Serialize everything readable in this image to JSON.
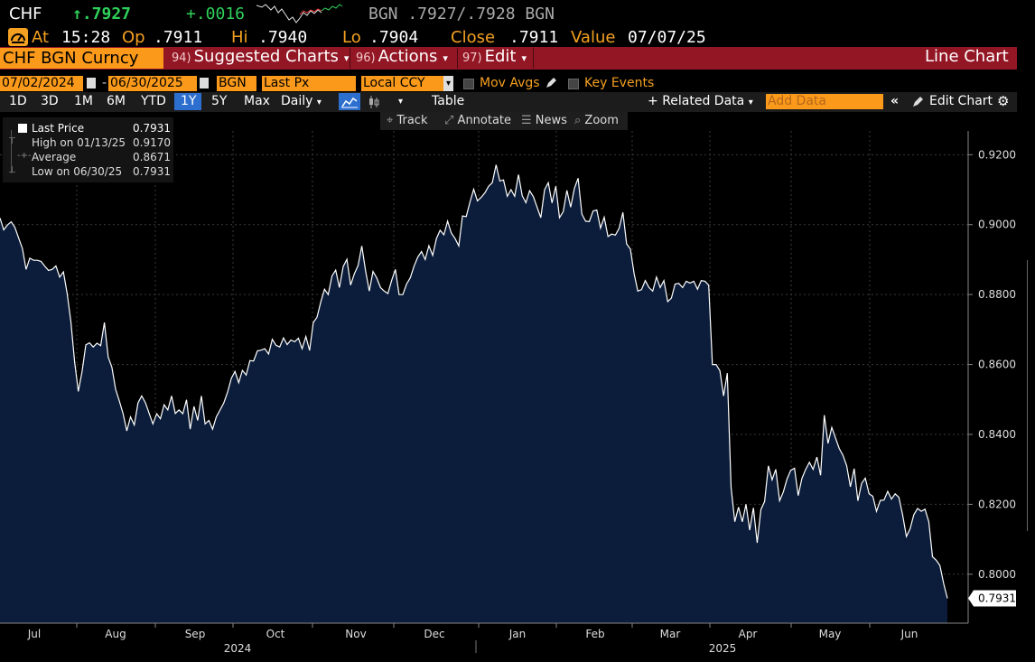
{
  "quote": {
    "ticker": "CHF",
    "last": "↑.7927",
    "change": "+.0016",
    "bid_ask": "BGN .7927/.7928 BGN",
    "time_label": "At",
    "time": "15:28",
    "open_label": "Op",
    "open": ".7911",
    "high_label": "Hi",
    "high": ".7940",
    "low_label": "Lo",
    "low": ".7904",
    "close_label": "Close",
    "close": ".7911",
    "value_label": "Value",
    "value_date": "07/07/25"
  },
  "menubar": {
    "security": "CHF BGN Curncy",
    "suggested_num": "94)",
    "suggested": "Suggested Charts",
    "actions_num": "96)",
    "actions": "Actions",
    "edit_num": "97)",
    "edit": "Edit",
    "chart_type": "Line Chart"
  },
  "settings": {
    "start_date": "07/02/2024",
    "end_date": "06/30/2025",
    "source": "BGN",
    "field": "Last Px",
    "currency": "Local CCY",
    "mov_avgs": "Mov Avgs",
    "key_events": "Key Events"
  },
  "toolbar": {
    "periods": [
      "1D",
      "3D",
      "1M",
      "6M",
      "YTD",
      "1Y",
      "5Y",
      "Max"
    ],
    "selected_period": "1Y",
    "frequency": "Daily",
    "table": "Table",
    "related_data": "Related Data",
    "add_data_placeholder": "Add Data",
    "edit_chart": "Edit Chart"
  },
  "chart_tools": {
    "track": "Track",
    "annotate": "Annotate",
    "news": "News",
    "zoom": "Zoom"
  },
  "legend": {
    "last_price_label": "Last Price",
    "last_price": "0.7931",
    "high_label": "High on 01/13/25",
    "high": "0.9170",
    "average_label": "Average",
    "average": "0.8671",
    "low_label": "Low on 06/30/25",
    "low": "0.7931"
  },
  "colors": {
    "orange": "#fb9a1a",
    "menu_red": "#931624",
    "area_fill": "#0b1d3a",
    "line": "#ffffff",
    "up_green": "#2fd05a"
  },
  "chart_data": {
    "type": "area",
    "title": "",
    "xlabel": "",
    "ylabel": "",
    "ylim": [
      0.786,
      0.9268
    ],
    "y_ticks": [
      "0.9200",
      "0.9000",
      "0.8800",
      "0.8600",
      "0.8400",
      "0.8200",
      "0.8000"
    ],
    "month_labels": [
      "Jul",
      "Aug",
      "Sep",
      "Oct",
      "Nov",
      "Dec",
      "Jan",
      "Feb",
      "Mar",
      "Apr",
      "May",
      "Jun"
    ],
    "year_labels": [
      "2024",
      "2025"
    ],
    "last_value_label": "0.7931",
    "series": [
      {
        "values": [
          0.9019,
          0.8985,
          0.8999,
          0.9008,
          0.8992,
          0.8962,
          0.8932,
          0.8872,
          0.8904,
          0.8898,
          0.8898,
          0.8895,
          0.8881,
          0.8869,
          0.8872,
          0.8882,
          0.885,
          0.8865,
          0.8804,
          0.8722,
          0.8608,
          0.8523,
          0.858,
          0.8656,
          0.8662,
          0.865,
          0.8661,
          0.8654,
          0.872,
          0.8621,
          0.8592,
          0.8529,
          0.8495,
          0.8459,
          0.841,
          0.845,
          0.8427,
          0.849,
          0.851,
          0.849,
          0.846,
          0.843,
          0.8459,
          0.8445,
          0.8485,
          0.847,
          0.851,
          0.846,
          0.847,
          0.8459,
          0.8499,
          0.8415,
          0.848,
          0.844,
          0.851,
          0.843,
          0.844,
          0.8415,
          0.845,
          0.847,
          0.849,
          0.852,
          0.856,
          0.858,
          0.8548,
          0.8583,
          0.857,
          0.8611,
          0.861,
          0.8639,
          0.8641,
          0.8645,
          0.863,
          0.8672,
          0.8655,
          0.865,
          0.8676,
          0.8657,
          0.867,
          0.8665,
          0.8675,
          0.8645,
          0.868,
          0.864,
          0.872,
          0.8735,
          0.8779,
          0.8815,
          0.88,
          0.8853,
          0.887,
          0.882,
          0.888,
          0.8901,
          0.8827,
          0.8859,
          0.8883,
          0.8939,
          0.8869,
          0.881,
          0.8866,
          0.8848,
          0.882,
          0.881,
          0.8803,
          0.884,
          0.8872,
          0.88,
          0.88,
          0.883,
          0.8848,
          0.8881,
          0.8907,
          0.8923,
          0.89,
          0.894,
          0.8912,
          0.896,
          0.8984,
          0.8971,
          0.901,
          0.8976,
          0.896,
          0.8939,
          0.9025,
          0.9023,
          0.9065,
          0.9101,
          0.9068,
          0.9078,
          0.9091,
          0.911,
          0.912,
          0.9171,
          0.9125,
          0.9128,
          0.9081,
          0.91,
          0.9081,
          0.9143,
          0.9083,
          0.9063,
          0.9097,
          0.908,
          0.905,
          0.902,
          0.91,
          0.912,
          0.9062,
          0.911,
          0.902,
          0.9037,
          0.9098,
          0.905,
          0.9104,
          0.9133,
          0.903,
          0.901,
          0.9009,
          0.9039,
          0.9042,
          0.899,
          0.9021,
          0.8966,
          0.8973,
          0.897,
          0.899,
          0.9035,
          0.8945,
          0.893,
          0.886,
          0.881,
          0.8814,
          0.884,
          0.882,
          0.881,
          0.885,
          0.882,
          0.884,
          0.878,
          0.879,
          0.883,
          0.8832,
          0.882,
          0.8838,
          0.8833,
          0.8838,
          0.8815,
          0.884,
          0.8838,
          0.8827,
          0.86,
          0.86,
          0.8582,
          0.851,
          0.8575,
          0.8248,
          0.815,
          0.8192,
          0.815,
          0.82,
          0.8126,
          0.819,
          0.809,
          0.8185,
          0.8208,
          0.831,
          0.827,
          0.83,
          0.821,
          0.8235,
          0.8272,
          0.8297,
          0.8303,
          0.8225,
          0.8274,
          0.83,
          0.832,
          0.83,
          0.8335,
          0.8283,
          0.8455,
          0.8374,
          0.842,
          0.839,
          0.836,
          0.834,
          0.831,
          0.825,
          0.8302,
          0.821,
          0.826,
          0.8275,
          0.823,
          0.8223,
          0.818,
          0.8211,
          0.8212,
          0.8237,
          0.8215,
          0.823,
          0.822,
          0.817,
          0.8108,
          0.813,
          0.817,
          0.8188,
          0.818,
          0.8186,
          0.815,
          0.805,
          0.804,
          0.8025,
          0.7973,
          0.7931
        ]
      }
    ]
  }
}
